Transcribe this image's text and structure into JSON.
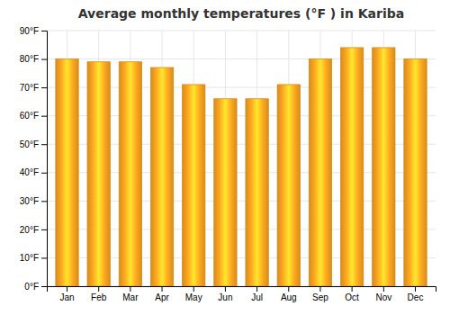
{
  "chart_data": {
    "type": "bar",
    "title": "Average monthly temperatures (°F ) in Kariba",
    "categories": [
      "Jan",
      "Feb",
      "Mar",
      "Apr",
      "May",
      "Jun",
      "Jul",
      "Aug",
      "Sep",
      "Oct",
      "Nov",
      "Dec"
    ],
    "values": [
      80,
      79,
      79,
      77,
      71,
      66,
      66,
      71,
      80,
      84,
      84,
      80
    ],
    "color": "#FFA820",
    "ylim": [
      0,
      90
    ],
    "yticks": [
      {
        "value": 0,
        "label": "0°F"
      },
      {
        "value": 10,
        "label": "10°F"
      },
      {
        "value": 20,
        "label": "20°F"
      },
      {
        "value": 30,
        "label": "30°F"
      },
      {
        "value": 40,
        "label": "40°F"
      },
      {
        "value": 50,
        "label": "50°F"
      },
      {
        "value": 60,
        "label": "60°F"
      },
      {
        "value": 70,
        "label": "70°F"
      },
      {
        "value": 80,
        "label": "80°F"
      },
      {
        "value": 90,
        "label": "90°F"
      }
    ],
    "grid": true
  }
}
